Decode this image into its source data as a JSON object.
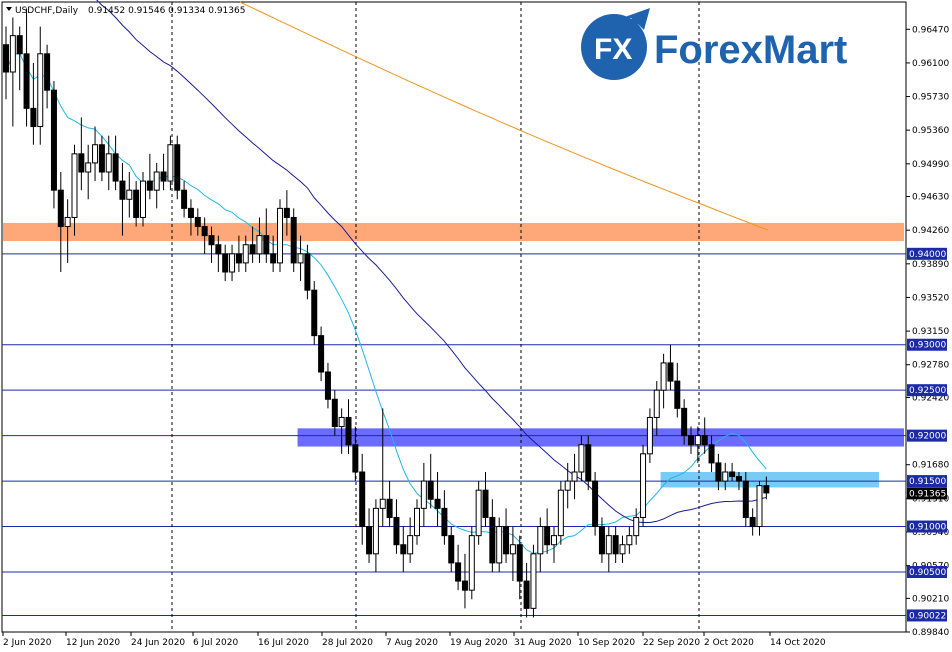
{
  "header": {
    "symbol": "USDCHF,Daily",
    "ohlc": "0.91452 0.91546 0.91334 0.91365"
  },
  "logo": {
    "mark": "FX",
    "word": "ForexMart"
  },
  "colors": {
    "candle_up": "#ffffff",
    "candle_down": "#000000",
    "ma_short": "#21b7e4",
    "ma_mid": "#1b1b9a",
    "ma_long": "#f0931e",
    "level_line": "#1b2ba8",
    "orange_zone": "#fe9f6a",
    "blue_zone": "#5b5bff",
    "light_blue_zone": "#5fc2f2",
    "logo_blue": "#1f63ae"
  },
  "chart_data": {
    "type": "candlestick",
    "ylim": [
      0.8984,
      0.9677
    ],
    "x_tick_labels": [
      "2 Jun 2020",
      "12 Jun 2020",
      "24 Jun 2020",
      "6 Jul 2020",
      "16 Jul 2020",
      "28 Jul 2020",
      "7 Aug 2020",
      "19 Aug 2020",
      "31 Aug 2020",
      "10 Sep 2020",
      "22 Sep 2020",
      "2 Oct 2020",
      "14 Oct 2020"
    ],
    "y_tick_labels": [
      "0.96470",
      "0.96100",
      "0.95730",
      "0.95360",
      "0.94990",
      "0.94630",
      "0.94260",
      "0.93890",
      "0.93520",
      "0.93150",
      "0.92780",
      "0.92420",
      "0.91680",
      "0.91310",
      "0.90940",
      "0.90570",
      "0.90210",
      "0.89840"
    ],
    "y_tick_values": [
      0.9647,
      0.961,
      0.9573,
      0.9536,
      0.9499,
      0.9463,
      0.9426,
      0.9389,
      0.9352,
      0.9315,
      0.9278,
      0.9242,
      0.9168,
      0.9131,
      0.9094,
      0.9057,
      0.9021,
      0.8984
    ],
    "levels": [
      0.94,
      0.93,
      0.925,
      0.92,
      0.915,
      0.91,
      0.905,
      0.90022
    ],
    "level_labels": [
      "0.94000",
      "0.93000",
      "0.92500",
      "0.92000",
      "0.91500",
      "0.91000",
      "0.90500",
      "0.90022"
    ],
    "current_price": 0.91365,
    "current_price_label": "0.91365",
    "zones": [
      {
        "name": "orange-zone",
        "low": 0.9414,
        "high": 0.9434,
        "from_index": 0,
        "to_index": 132
      },
      {
        "name": "blue-zone",
        "low": 0.9188,
        "high": 0.9208,
        "from_index": 43,
        "to_index": 131
      },
      {
        "name": "light-blue-zone",
        "low": 0.9143,
        "high": 0.916,
        "from_index": 96,
        "to_index": 127
      }
    ],
    "candles": [
      [
        0.963,
        0.965,
        0.957,
        0.96
      ],
      [
        0.96,
        0.966,
        0.954,
        0.964
      ],
      [
        0.964,
        0.965,
        0.958,
        0.962
      ],
      [
        0.962,
        0.967,
        0.954,
        0.956
      ],
      [
        0.956,
        0.961,
        0.952,
        0.954
      ],
      [
        0.954,
        0.965,
        0.952,
        0.962
      ],
      [
        0.962,
        0.963,
        0.956,
        0.958
      ],
      [
        0.958,
        0.959,
        0.945,
        0.947
      ],
      [
        0.947,
        0.949,
        0.938,
        0.943
      ],
      [
        0.943,
        0.946,
        0.939,
        0.944
      ],
      [
        0.944,
        0.952,
        0.942,
        0.951
      ],
      [
        0.951,
        0.955,
        0.947,
        0.949
      ],
      [
        0.949,
        0.952,
        0.946,
        0.95
      ],
      [
        0.95,
        0.954,
        0.948,
        0.952
      ],
      [
        0.952,
        0.953,
        0.948,
        0.949
      ],
      [
        0.949,
        0.953,
        0.947,
        0.951
      ],
      [
        0.951,
        0.953,
        0.947,
        0.948
      ],
      [
        0.948,
        0.95,
        0.942,
        0.946
      ],
      [
        0.946,
        0.949,
        0.944,
        0.947
      ],
      [
        0.947,
        0.948,
        0.943,
        0.944
      ],
      [
        0.944,
        0.949,
        0.943,
        0.948
      ],
      [
        0.948,
        0.951,
        0.946,
        0.947
      ],
      [
        0.947,
        0.95,
        0.945,
        0.949
      ],
      [
        0.949,
        0.951,
        0.947,
        0.948
      ],
      [
        0.948,
        0.953,
        0.947,
        0.952
      ],
      [
        0.952,
        0.953,
        0.946,
        0.947
      ],
      [
        0.947,
        0.948,
        0.944,
        0.945
      ],
      [
        0.945,
        0.946,
        0.942,
        0.944
      ],
      [
        0.944,
        0.945,
        0.942,
        0.943
      ],
      [
        0.943,
        0.944,
        0.94,
        0.942
      ],
      [
        0.942,
        0.943,
        0.939,
        0.941
      ],
      [
        0.941,
        0.942,
        0.938,
        0.94
      ],
      [
        0.94,
        0.941,
        0.937,
        0.938
      ],
      [
        0.938,
        0.941,
        0.937,
        0.94
      ],
      [
        0.94,
        0.942,
        0.938,
        0.939
      ],
      [
        0.939,
        0.942,
        0.938,
        0.941
      ],
      [
        0.941,
        0.943,
        0.939,
        0.94
      ],
      [
        0.94,
        0.944,
        0.939,
        0.942
      ],
      [
        0.942,
        0.945,
        0.939,
        0.94
      ],
      [
        0.94,
        0.942,
        0.938,
        0.939
      ],
      [
        0.939,
        0.946,
        0.938,
        0.945
      ],
      [
        0.945,
        0.947,
        0.942,
        0.944
      ],
      [
        0.944,
        0.945,
        0.938,
        0.939
      ],
      [
        0.939,
        0.942,
        0.937,
        0.94
      ],
      [
        0.94,
        0.941,
        0.935,
        0.936
      ],
      [
        0.936,
        0.937,
        0.93,
        0.931
      ],
      [
        0.931,
        0.932,
        0.926,
        0.927
      ],
      [
        0.927,
        0.928,
        0.923,
        0.924
      ],
      [
        0.924,
        0.925,
        0.92,
        0.921
      ],
      [
        0.921,
        0.923,
        0.918,
        0.922
      ],
      [
        0.922,
        0.924,
        0.918,
        0.919
      ],
      [
        0.919,
        0.921,
        0.915,
        0.916
      ],
      [
        0.916,
        0.918,
        0.908,
        0.91
      ],
      [
        0.91,
        0.912,
        0.906,
        0.907
      ],
      [
        0.907,
        0.913,
        0.905,
        0.912
      ],
      [
        0.912,
        0.923,
        0.91,
        0.913
      ],
      [
        0.913,
        0.915,
        0.91,
        0.911
      ],
      [
        0.911,
        0.913,
        0.907,
        0.908
      ],
      [
        0.908,
        0.91,
        0.905,
        0.907
      ],
      [
        0.907,
        0.911,
        0.906,
        0.909
      ],
      [
        0.909,
        0.913,
        0.908,
        0.912
      ],
      [
        0.912,
        0.917,
        0.91,
        0.915
      ],
      [
        0.915,
        0.918,
        0.912,
        0.913
      ],
      [
        0.913,
        0.916,
        0.91,
        0.912
      ],
      [
        0.912,
        0.914,
        0.908,
        0.909
      ],
      [
        0.909,
        0.91,
        0.905,
        0.906
      ],
      [
        0.906,
        0.908,
        0.903,
        0.904
      ],
      [
        0.904,
        0.907,
        0.901,
        0.903
      ],
      [
        0.903,
        0.91,
        0.902,
        0.909
      ],
      [
        0.909,
        0.915,
        0.908,
        0.914
      ],
      [
        0.914,
        0.916,
        0.91,
        0.911
      ],
      [
        0.911,
        0.913,
        0.905,
        0.906
      ],
      [
        0.906,
        0.911,
        0.905,
        0.91
      ],
      [
        0.91,
        0.912,
        0.906,
        0.907
      ],
      [
        0.907,
        0.91,
        0.904,
        0.908
      ],
      [
        0.908,
        0.909,
        0.902,
        0.904
      ],
      [
        0.904,
        0.906,
        0.9,
        0.901
      ],
      [
        0.901,
        0.908,
        0.9,
        0.907
      ],
      [
        0.907,
        0.911,
        0.905,
        0.91
      ],
      [
        0.91,
        0.912,
        0.907,
        0.908
      ],
      [
        0.908,
        0.91,
        0.906,
        0.909
      ],
      [
        0.909,
        0.915,
        0.908,
        0.914
      ],
      [
        0.914,
        0.917,
        0.912,
        0.915
      ],
      [
        0.915,
        0.918,
        0.913,
        0.916
      ],
      [
        0.916,
        0.92,
        0.915,
        0.919
      ],
      [
        0.919,
        0.92,
        0.914,
        0.915
      ],
      [
        0.915,
        0.916,
        0.909,
        0.91
      ],
      [
        0.91,
        0.911,
        0.906,
        0.907
      ],
      [
        0.907,
        0.91,
        0.905,
        0.909
      ],
      [
        0.909,
        0.91,
        0.906,
        0.907
      ],
      [
        0.907,
        0.909,
        0.906,
        0.908
      ],
      [
        0.908,
        0.91,
        0.907,
        0.909
      ],
      [
        0.909,
        0.912,
        0.908,
        0.911
      ],
      [
        0.911,
        0.919,
        0.91,
        0.918
      ],
      [
        0.918,
        0.923,
        0.917,
        0.922
      ],
      [
        0.922,
        0.926,
        0.92,
        0.925
      ],
      [
        0.925,
        0.929,
        0.923,
        0.928
      ],
      [
        0.928,
        0.93,
        0.925,
        0.926
      ],
      [
        0.926,
        0.928,
        0.922,
        0.923
      ],
      [
        0.923,
        0.924,
        0.919,
        0.92
      ],
      [
        0.92,
        0.921,
        0.918,
        0.919
      ],
      [
        0.919,
        0.921,
        0.917,
        0.92
      ],
      [
        0.92,
        0.922,
        0.918,
        0.919
      ],
      [
        0.919,
        0.92,
        0.916,
        0.917
      ],
      [
        0.917,
        0.918,
        0.914,
        0.915
      ],
      [
        0.915,
        0.917,
        0.914,
        0.916
      ],
      [
        0.916,
        0.917,
        0.915,
        0.9155
      ],
      [
        0.9155,
        0.916,
        0.914,
        0.915
      ],
      [
        0.915,
        0.916,
        0.91,
        0.911
      ],
      [
        0.911,
        0.912,
        0.909,
        0.91
      ],
      [
        0.91,
        0.915,
        0.909,
        0.9145
      ],
      [
        0.9145,
        0.9155,
        0.913,
        0.9137
      ]
    ]
  }
}
